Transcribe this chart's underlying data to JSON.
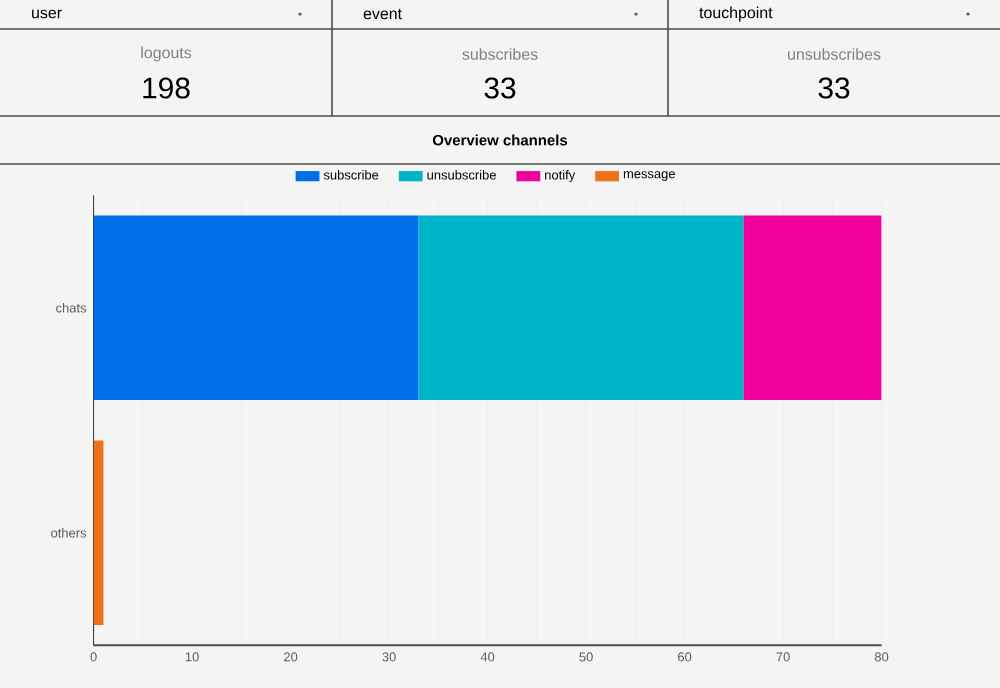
{
  "chart_data": [
    {
      "type": "other",
      "categories": [
        "logouts",
        "subscribes",
        "unsubscribes"
      ],
      "annotations": [
        "user",
        "event",
        "touchpoint",
        "198",
        "33",
        "33"
      ]
    },
    {
      "type": "bar",
      "title": "Overview channels",
      "orientation": "horizontal",
      "stacked": true,
      "categories": [
        "chats",
        "others"
      ],
      "series": [
        {
          "name": "subscribe",
          "color": "#0070e8",
          "values": [
            33,
            null
          ]
        },
        {
          "name": "unsubscribe",
          "color": "#00b4c8",
          "values": [
            33,
            null
          ]
        },
        {
          "name": "notify",
          "color": "#f0009a",
          "values": [
            14,
            null
          ]
        },
        {
          "name": "message",
          "color": "#f07018",
          "values": [
            null,
            1
          ]
        }
      ],
      "xlim": [
        0,
        80
      ],
      "xticks": [
        0,
        {
          "value": 5,
          "label": null
        },
        10,
        {
          "value": 15,
          "label": null
        },
        20,
        {
          "value": 25,
          "label": null
        },
        30,
        {
          "value": 35,
          "label": null
        },
        40,
        {
          "value": 45,
          "label": null
        },
        50,
        {
          "value": 55,
          "label": null
        },
        60,
        {
          "value": 65,
          "label": null
        },
        70,
        {
          "value": 75,
          "label": null
        },
        80
      ],
      "grid": "x",
      "legend": "top"
    }
  ]
}
